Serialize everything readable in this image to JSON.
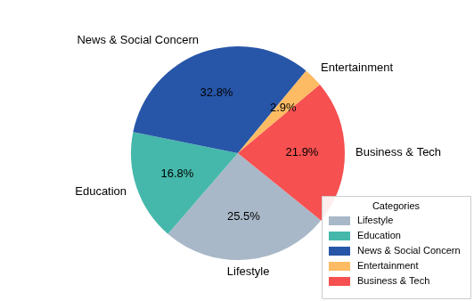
{
  "chart_data": {
    "type": "pie",
    "categories": [
      "Lifestyle",
      "Education",
      "News & Social Concern",
      "Entertainment",
      "Business & Tech"
    ],
    "values": [
      25.5,
      16.8,
      32.8,
      2.9,
      21.9
    ],
    "value_labels": [
      "25.5%",
      "16.8%",
      "32.8%",
      "2.9%",
      "21.9%"
    ],
    "colors": [
      "#a9b8c8",
      "#45b8ab",
      "#2756a8",
      "#fdbb63",
      "#f65050"
    ],
    "data_labels": true,
    "legend": "lower right",
    "legend_title": "Categories"
  }
}
